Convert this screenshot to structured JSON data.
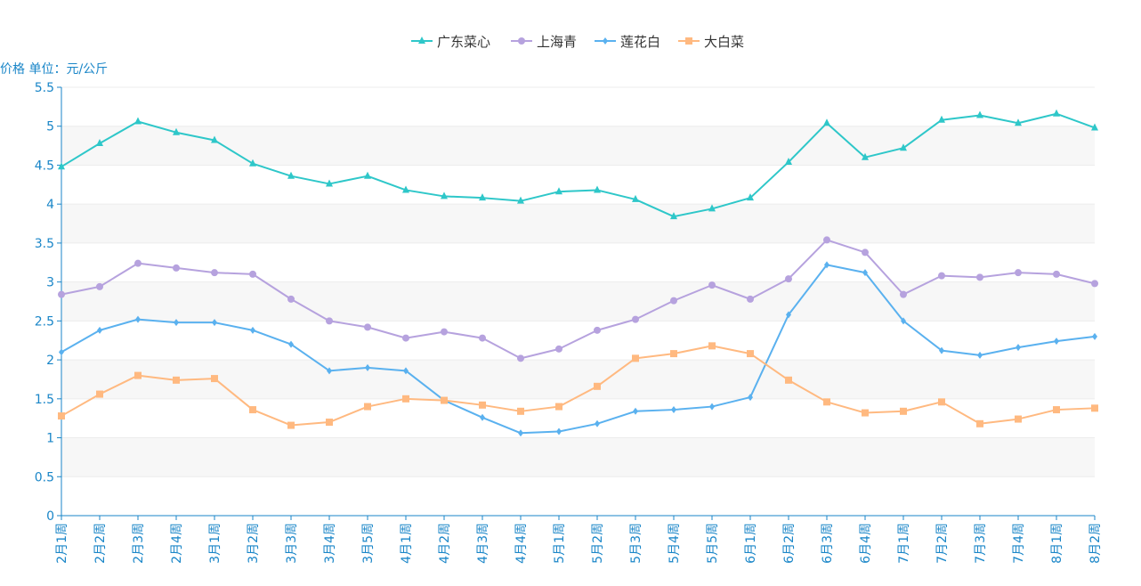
{
  "chart_data": {
    "type": "line",
    "ylabel": "价格 单位：元/公斤",
    "ylim": [
      0,
      5.5
    ],
    "yticks": [
      0,
      0.5,
      1,
      1.5,
      2,
      2.5,
      3,
      3.5,
      4,
      4.5,
      5,
      5.5
    ],
    "ytick_labels": [
      "0",
      "0.5",
      "1",
      "1.5",
      "2",
      "2.5",
      "3",
      "3.5",
      "4",
      "4.5",
      "5",
      "5.5"
    ],
    "grid": "horizontal, alternating bands",
    "legend_position": "top-center",
    "categories": [
      "2月1周",
      "2月2周",
      "2月3周",
      "2月4周",
      "3月1周",
      "3月2周",
      "3月3周",
      "3月4周",
      "3月5周",
      "4月1周",
      "4月2周",
      "4月3周",
      "4月4周",
      "5月1周",
      "5月2周",
      "5月3周",
      "5月4周",
      "5月5周",
      "6月1周",
      "6月2周",
      "6月3周",
      "6月4周",
      "7月1周",
      "7月2周",
      "7月3周",
      "7月4周",
      "8月1周",
      "8月2周"
    ],
    "series": [
      {
        "name": "广东菜心",
        "color": "#2ec7c9",
        "marker": "triangle",
        "values": [
          4.48,
          4.78,
          5.06,
          4.92,
          4.82,
          4.52,
          4.36,
          4.26,
          4.36,
          4.18,
          4.1,
          4.08,
          4.04,
          4.16,
          4.18,
          4.06,
          3.84,
          3.94,
          4.08,
          4.54,
          5.04,
          4.6,
          4.72,
          5.08,
          5.14,
          5.04,
          5.16,
          4.98
        ]
      },
      {
        "name": "上海青",
        "color": "#b6a2de",
        "marker": "circle",
        "values": [
          2.84,
          2.94,
          3.24,
          3.18,
          3.12,
          3.1,
          2.78,
          2.5,
          2.42,
          2.28,
          2.36,
          2.28,
          2.02,
          2.14,
          2.38,
          2.52,
          2.76,
          2.96,
          2.78,
          3.04,
          3.54,
          3.38,
          2.84,
          3.08,
          3.06,
          3.12,
          3.1,
          2.98
        ]
      },
      {
        "name": "莲花白",
        "color": "#5ab1ef",
        "marker": "diamond",
        "values": [
          2.1,
          2.38,
          2.52,
          2.48,
          2.48,
          2.38,
          2.2,
          1.86,
          1.9,
          1.86,
          1.48,
          1.26,
          1.06,
          1.08,
          1.18,
          1.34,
          1.36,
          1.4,
          1.52,
          2.58,
          3.22,
          3.12,
          2.5,
          2.12,
          2.06,
          2.16,
          2.24,
          2.3
        ]
      },
      {
        "name": "大白菜",
        "color": "#ffb980",
        "marker": "square",
        "values": [
          1.28,
          1.56,
          1.8,
          1.74,
          1.76,
          1.36,
          1.16,
          1.2,
          1.4,
          1.5,
          1.48,
          1.42,
          1.34,
          1.4,
          1.66,
          2.02,
          2.08,
          2.18,
          2.08,
          1.74,
          1.46,
          1.32,
          1.34,
          1.46,
          1.18,
          1.24,
          1.36,
          1.38
        ]
      }
    ]
  }
}
